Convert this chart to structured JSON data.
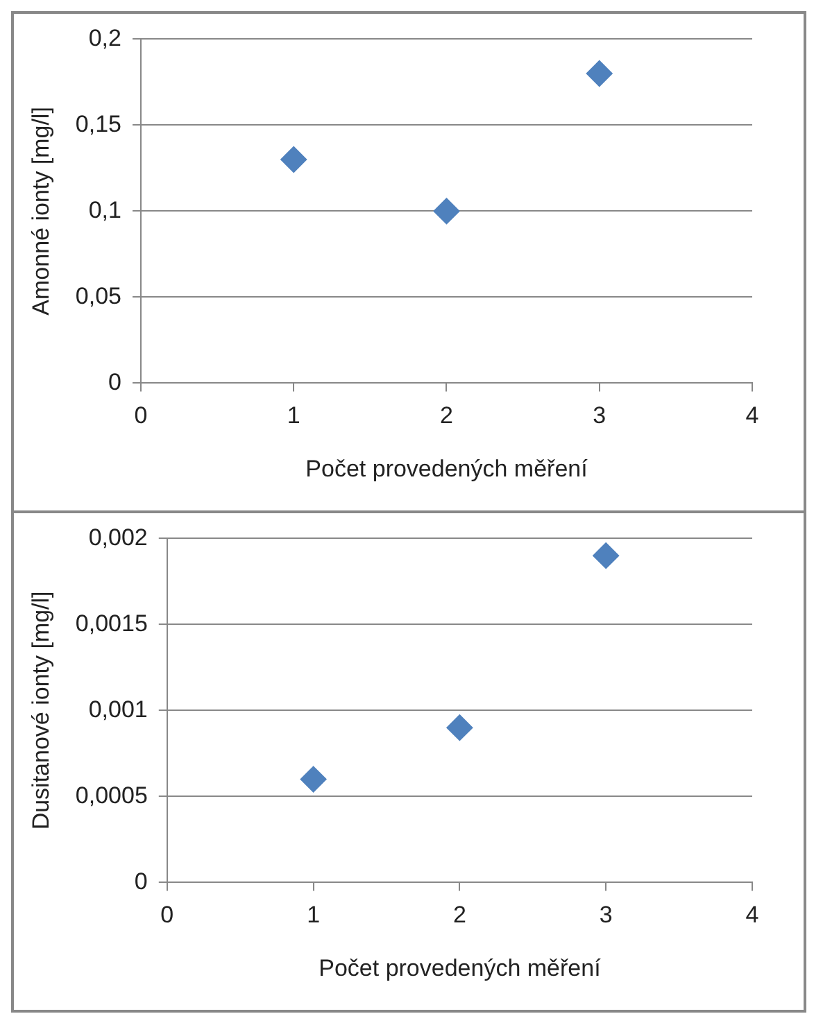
{
  "chart_data": [
    {
      "type": "scatter",
      "xlabel": "Počet provedených měření",
      "ylabel": "Amonné ionty [mg/l]",
      "x": [
        1,
        2,
        3
      ],
      "values": [
        0.13,
        0.1,
        0.18
      ],
      "color": "#4f81bd",
      "marker": "diamond",
      "xlim": [
        0,
        4
      ],
      "xticks": [
        0,
        1,
        2,
        3,
        4
      ],
      "ylim": [
        0,
        0.2
      ],
      "yticks": [
        0,
        {
          "value": 0.05,
          "label": "0,05"
        },
        {
          "value": 0.1,
          "label": "0,1"
        },
        {
          "value": 0.15,
          "label": "0,15"
        },
        {
          "value": 0.2,
          "label": "0,2"
        }
      ],
      "grid": "y",
      "legend": false
    },
    {
      "type": "scatter",
      "xlabel": "Počet provedených měření",
      "ylabel": "Dusitanové ionty [mg/l]",
      "x": [
        1,
        2,
        3
      ],
      "values": [
        0.0006,
        0.0009,
        0.0019
      ],
      "color": "#4f81bd",
      "marker": "diamond",
      "xlim": [
        0,
        4
      ],
      "xticks": [
        0,
        1,
        2,
        3,
        4
      ],
      "ylim": [
        0,
        0.002
      ],
      "yticks": [
        0,
        {
          "value": 0.0005,
          "label": "0,0005"
        },
        {
          "value": 0.001,
          "label": "0,001"
        },
        {
          "value": 0.0015,
          "label": "0,0015"
        },
        {
          "value": 0.002,
          "label": "0,002"
        }
      ],
      "grid": "y",
      "legend": false
    }
  ]
}
